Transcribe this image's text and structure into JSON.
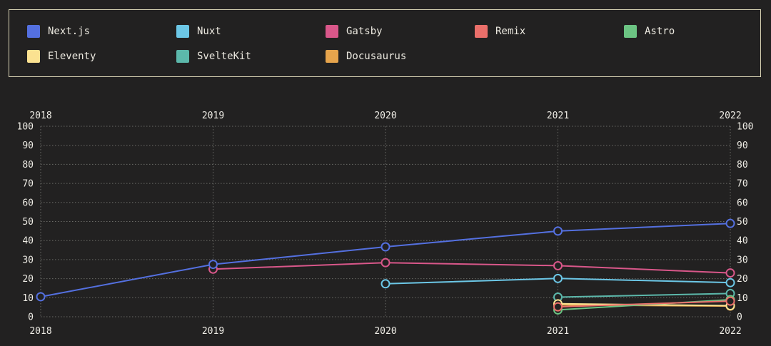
{
  "chart_data": {
    "type": "line",
    "x": [
      2018,
      2019,
      2020,
      2021,
      2022
    ],
    "x_tick_labels": [
      "2018",
      "2019",
      "2020",
      "2021",
      "2022"
    ],
    "y_tick_labels": [
      "0",
      "10",
      "20",
      "30",
      "40",
      "50",
      "60",
      "70",
      "80",
      "90",
      "100"
    ],
    "ylim": [
      0,
      100
    ],
    "grid": true,
    "legend_position": "top",
    "series": [
      {
        "name": "Next.js",
        "color": "#5470e0",
        "values": [
          10.5,
          27.5,
          36.7,
          45.0,
          49.0
        ]
      },
      {
        "name": "Nuxt",
        "color": "#6cc7e6",
        "values": [
          null,
          null,
          17.3,
          20.1,
          17.9
        ]
      },
      {
        "name": "Gatsby",
        "color": "#d9578a",
        "values": [
          null,
          25.0,
          28.4,
          26.8,
          23.0
        ]
      },
      {
        "name": "Remix",
        "color": "#ea6f6a",
        "values": [
          null,
          null,
          null,
          5.2,
          8.2
        ]
      },
      {
        "name": "Astro",
        "color": "#6cc483",
        "values": [
          null,
          null,
          null,
          3.6,
          9.0
        ]
      },
      {
        "name": "Eleventy",
        "color": "#fbe291",
        "values": [
          null,
          null,
          null,
          6.8,
          5.8
        ]
      },
      {
        "name": "SvelteKit",
        "color": "#5cb8ab",
        "values": [
          null,
          null,
          null,
          10.3,
          12.2
        ]
      },
      {
        "name": "Docusaurus",
        "color": "#e6a44c",
        "values": [
          null,
          null,
          null,
          6.2,
          5.6
        ]
      }
    ]
  }
}
